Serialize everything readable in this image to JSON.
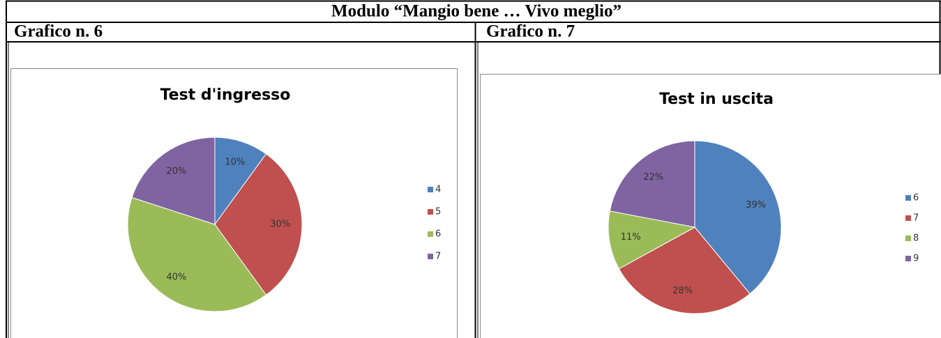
{
  "header": {
    "title": "Modulo “Mangio bene … Vivo meglio”"
  },
  "table": {
    "captions": [
      "Grafico n. 6",
      "Grafico n. 7"
    ]
  },
  "chart_data": [
    {
      "type": "pie",
      "title": "Test d'ingresso",
      "categories": [
        "4",
        "5",
        "6",
        "7"
      ],
      "values": [
        10,
        30,
        40,
        20
      ],
      "value_labels": [
        "10%",
        "30%",
        "40%",
        "20%"
      ],
      "colors": [
        "#4f81bd",
        "#c0504d",
        "#9bbb59",
        "#8064a2"
      ],
      "legend": "right"
    },
    {
      "type": "pie",
      "title": "Test in uscita",
      "categories": [
        "6",
        "7",
        "8",
        "9"
      ],
      "values": [
        39,
        28,
        11,
        22
      ],
      "value_labels": [
        "39%",
        "28%",
        "11%",
        "22%"
      ],
      "colors": [
        "#4f81bd",
        "#c0504d",
        "#9bbb59",
        "#8064a2"
      ],
      "legend": "right"
    }
  ]
}
